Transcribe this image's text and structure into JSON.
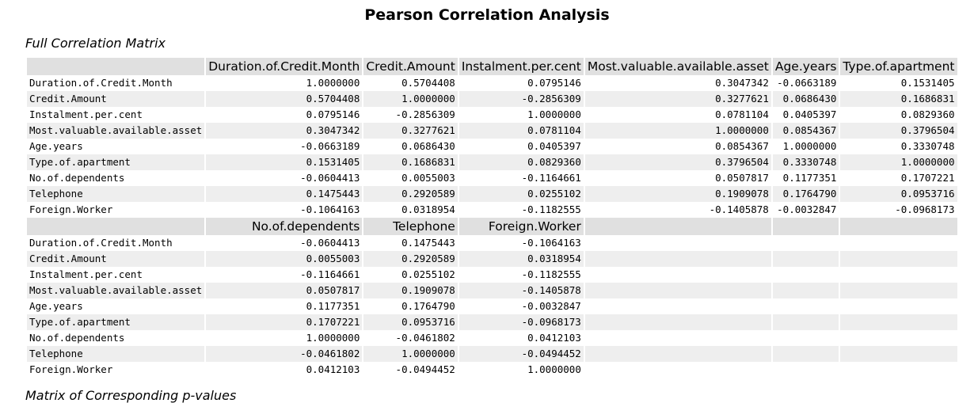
{
  "title": "Pearson Correlation Analysis",
  "full_title": "Full Correlation Matrix",
  "pvalue_title": "Matrix of Corresponding p-values",
  "block1_headers": [
    "Duration.of.Credit.Month",
    "Credit.Amount",
    "Instalment.per.cent",
    "Most.valuable.available.asset",
    "Age.years",
    "Type.of.apartment"
  ],
  "block2_headers": [
    "No.of.dependents",
    "Telephone",
    "Foreign.Worker"
  ],
  "rows": [
    {
      "name": "Duration.of.Credit.Month",
      "b1": [
        "1.0000000",
        "0.5704408",
        "0.0795146",
        "0.3047342",
        "-0.0663189",
        "0.1531405"
      ],
      "b2": [
        "-0.0604413",
        "0.1475443",
        "-0.1064163"
      ]
    },
    {
      "name": "Credit.Amount",
      "b1": [
        "0.5704408",
        "1.0000000",
        "-0.2856309",
        "0.3277621",
        "0.0686430",
        "0.1686831"
      ],
      "b2": [
        "0.0055003",
        "0.2920589",
        "0.0318954"
      ]
    },
    {
      "name": "Instalment.per.cent",
      "b1": [
        "0.0795146",
        "-0.2856309",
        "1.0000000",
        "0.0781104",
        "0.0405397",
        "0.0829360"
      ],
      "b2": [
        "-0.1164661",
        "0.0255102",
        "-0.1182555"
      ]
    },
    {
      "name": "Most.valuable.available.asset",
      "b1": [
        "0.3047342",
        "0.3277621",
        "0.0781104",
        "1.0000000",
        "0.0854367",
        "0.3796504"
      ],
      "b2": [
        "0.0507817",
        "0.1909078",
        "-0.1405878"
      ]
    },
    {
      "name": "Age.years",
      "b1": [
        "-0.0663189",
        "0.0686430",
        "0.0405397",
        "0.0854367",
        "1.0000000",
        "0.3330748"
      ],
      "b2": [
        "0.1177351",
        "0.1764790",
        "-0.0032847"
      ]
    },
    {
      "name": "Type.of.apartment",
      "b1": [
        "0.1531405",
        "0.1686831",
        "0.0829360",
        "0.3796504",
        "0.3330748",
        "1.0000000"
      ],
      "b2": [
        "0.1707221",
        "0.0953716",
        "-0.0968173"
      ]
    },
    {
      "name": "No.of.dependents",
      "b1": [
        "-0.0604413",
        "0.0055003",
        "-0.1164661",
        "0.0507817",
        "0.1177351",
        "0.1707221"
      ],
      "b2": [
        "1.0000000",
        "-0.0461802",
        "0.0412103"
      ]
    },
    {
      "name": "Telephone",
      "b1": [
        "0.1475443",
        "0.2920589",
        "0.0255102",
        "0.1909078",
        "0.1764790",
        "0.0953716"
      ],
      "b2": [
        "-0.0461802",
        "1.0000000",
        "-0.0494452"
      ]
    },
    {
      "name": "Foreign.Worker",
      "b1": [
        "-0.1064163",
        "0.0318954",
        "-0.1182555",
        "-0.1405878",
        "-0.0032847",
        "-0.0968173"
      ],
      "b2": [
        "0.0412103",
        "-0.0494452",
        "1.0000000"
      ]
    }
  ]
}
